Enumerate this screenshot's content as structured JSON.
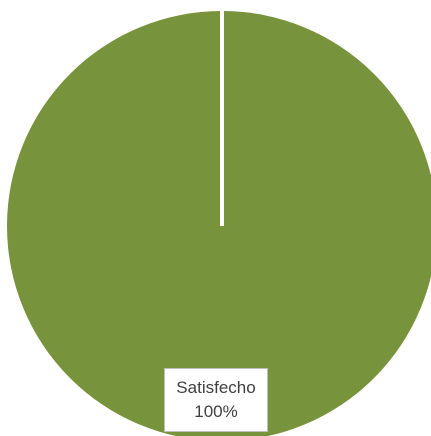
{
  "chart_data": {
    "type": "pie",
    "slices": [
      {
        "name": "Satisfecho",
        "value": 100,
        "label": "100%",
        "color": "#77933c"
      }
    ],
    "separator_color": "#ffffff",
    "legend": "none"
  }
}
